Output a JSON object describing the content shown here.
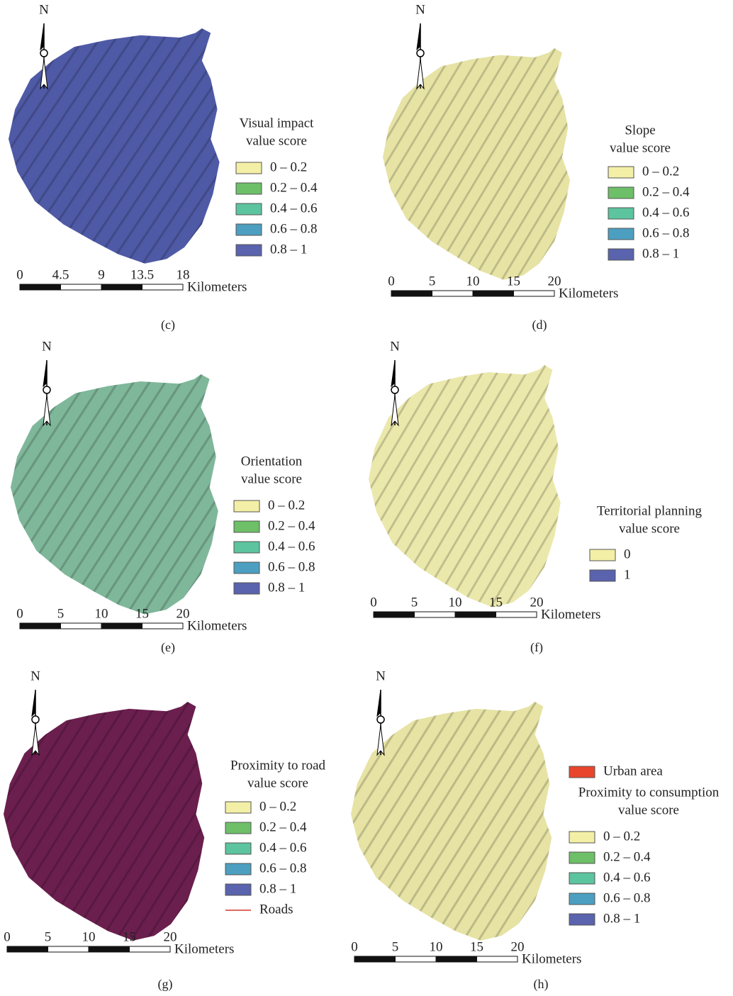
{
  "north": "N",
  "unit": "Kilometers",
  "panels": [
    {
      "caption": "(c)",
      "legend_title": [
        "Visual impact",
        "value score"
      ],
      "legend": [
        {
          "label": "0 – 0.2",
          "color": "#f3efa6"
        },
        {
          "label": "0.2 – 0.4",
          "color": "#6dbf68"
        },
        {
          "label": "0.4 – 0.6",
          "color": "#5cc49e"
        },
        {
          "label": "0.6 – 0.8",
          "color": "#4c9fc0"
        },
        {
          "label": "0.8 – 1",
          "color": "#5a63ad"
        }
      ],
      "scale": [
        0,
        4.5,
        9,
        13.5,
        18
      ]
    },
    {
      "caption": "(d)",
      "legend_title": [
        "Slope",
        "value score"
      ],
      "legend": [
        {
          "label": "0 – 0.2",
          "color": "#f3efa6"
        },
        {
          "label": "0.2 – 0.4",
          "color": "#6dbf68"
        },
        {
          "label": "0.4 – 0.6",
          "color": "#5cc49e"
        },
        {
          "label": "0.6 – 0.8",
          "color": "#4c9fc0"
        },
        {
          "label": "0.8 – 1",
          "color": "#5a63ad"
        }
      ],
      "scale": [
        0,
        5,
        10,
        15,
        20
      ]
    },
    {
      "caption": "(e)",
      "legend_title": [
        "Orientation",
        "value score"
      ],
      "legend": [
        {
          "label": "0 – 0.2",
          "color": "#f3efa6"
        },
        {
          "label": "0.2 – 0.4",
          "color": "#6dbf68"
        },
        {
          "label": "0.4 – 0.6",
          "color": "#5cc49e"
        },
        {
          "label": "0.6 – 0.8",
          "color": "#4c9fc0"
        },
        {
          "label": "0.8 – 1",
          "color": "#5a63ad"
        }
      ],
      "scale": [
        0,
        5,
        10,
        15,
        20
      ]
    },
    {
      "caption": "(f)",
      "legend_title": [
        "Territorial planning",
        "value score"
      ],
      "legend": [
        {
          "label": "0",
          "color": "#f3efa6"
        },
        {
          "label": "1",
          "color": "#5a63ad"
        }
      ],
      "scale": [
        0,
        5,
        10,
        15,
        20
      ]
    },
    {
      "caption": "(g)",
      "legend_title": [
        "Proximity to road",
        "value score"
      ],
      "legend": [
        {
          "label": "0 – 0.2",
          "color": "#f3efa6"
        },
        {
          "label": "0.2 – 0.4",
          "color": "#6dbf68"
        },
        {
          "label": "0.4 – 0.6",
          "color": "#5cc49e"
        },
        {
          "label": "0.6 – 0.8",
          "color": "#4c9fc0"
        },
        {
          "label": "0.8 – 1",
          "color": "#5a63ad"
        }
      ],
      "extra": {
        "label": "Roads",
        "color": "#d6372b"
      },
      "scale": [
        0,
        5,
        10,
        15,
        20
      ]
    },
    {
      "caption": "(h)",
      "pre_legend": {
        "label": "Urban area",
        "color": "#e8452c"
      },
      "legend_title": [
        "Proximity to consumption",
        "value score"
      ],
      "legend": [
        {
          "label": "0 – 0.2",
          "color": "#f3efa6"
        },
        {
          "label": "0.2 – 0.4",
          "color": "#6dbf68"
        },
        {
          "label": "0.4 – 0.6",
          "color": "#5cc49e"
        },
        {
          "label": "0.6 – 0.8",
          "color": "#4c9fc0"
        },
        {
          "label": "0.8 – 1",
          "color": "#5a63ad"
        }
      ],
      "scale": [
        0,
        5,
        10,
        15,
        20
      ]
    }
  ]
}
